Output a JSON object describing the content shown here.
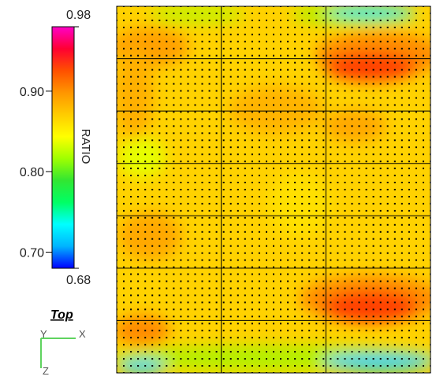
{
  "chart_data": {
    "type": "heatmap",
    "title": "",
    "colorbar": {
      "label": "RATIO",
      "range": [
        0.68,
        0.98
      ],
      "max_label": "0.98",
      "min_label": "0.68",
      "ticks": [
        {
          "value": 0.9,
          "label": "0.90"
        },
        {
          "value": 0.8,
          "label": "0.80"
        },
        {
          "value": 0.7,
          "label": "0.70"
        }
      ],
      "stops": [
        "#0000ff",
        "#00b4ff",
        "#00ffff",
        "#00ff64",
        "#32e632",
        "#a0ff00",
        "#ffff00",
        "#ffcc00",
        "#ff9600",
        "#ff5000",
        "#ff0032",
        "#ff00c8"
      ]
    },
    "grid": {
      "major_lines": true,
      "rows": 7,
      "cols": 3,
      "point_markers": true
    },
    "regions": [
      {
        "name": "high-ratio-band-upper-right",
        "level": 0.93
      },
      {
        "name": "high-ratio-band-lower-right",
        "level": 0.93
      },
      {
        "name": "low-ratio-band-top-right",
        "level": 0.76
      },
      {
        "name": "low-ratio-band-bottom",
        "level": 0.76
      },
      {
        "name": "background-field",
        "level": 0.87
      }
    ]
  },
  "view": {
    "orientation": "Top",
    "axis_x": "X",
    "axis_y": "Y",
    "axis_z": "Z"
  }
}
